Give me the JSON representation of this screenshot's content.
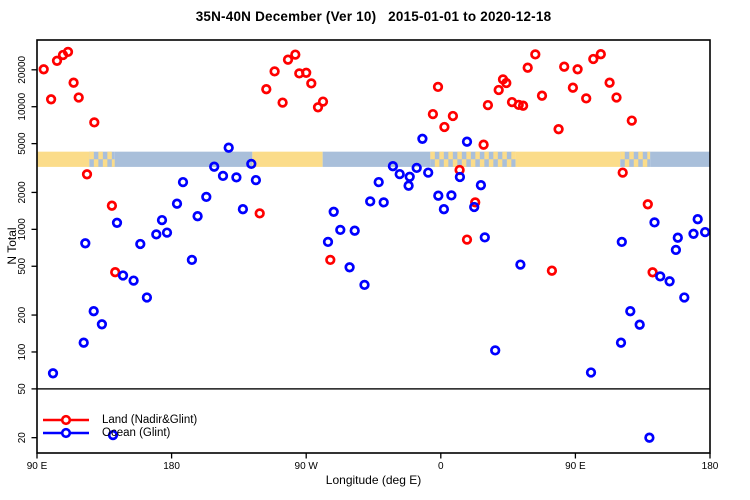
{
  "chart_data": {
    "type": "scatter",
    "title": "35N-40N December (Ver 10)   2015-01-01 to 2020-12-18",
    "xlabel": "Longitude (deg E)",
    "ylabel": "N Total",
    "y_scale": "log",
    "xlim": [
      90,
      540
    ],
    "ylim": [
      15,
      35000
    ],
    "grid": false,
    "reference_line": 50,
    "x_axis": {
      "ticks": [
        {
          "lon": 90,
          "label": "90 E"
        },
        {
          "lon": 180,
          "label": "180"
        },
        {
          "lon": 270,
          "label": "90 W"
        },
        {
          "lon": 360,
          "label": "0"
        },
        {
          "lon": 450,
          "label": "90 E"
        },
        {
          "lon": 540,
          "label": "180"
        }
      ]
    },
    "y_axis": {
      "ticks": [
        20000,
        10000,
        5000,
        2000,
        1000,
        500,
        200,
        100,
        50,
        20
      ]
    },
    "land_ocean_band": {
      "top_value": 4300,
      "bottom_value": 3230,
      "land_color": "#FBDC8A",
      "ocean_color": "#A9BFDA",
      "segments": [
        {
          "from": 90,
          "to": 125,
          "type": "land"
        },
        {
          "from": 125,
          "to": 142,
          "type": "mixed"
        },
        {
          "from": 142,
          "to": 234,
          "type": "ocean"
        },
        {
          "from": 234,
          "to": 281,
          "type": "land"
        },
        {
          "from": 281,
          "to": 353,
          "type": "ocean"
        },
        {
          "from": 353,
          "to": 410,
          "type": "mixed"
        },
        {
          "from": 410,
          "to": 480,
          "type": "land"
        },
        {
          "from": 480,
          "to": 500,
          "type": "mixed"
        },
        {
          "from": 500,
          "to": 540,
          "type": "ocean"
        }
      ]
    },
    "series": [
      {
        "name": "Land (Nadir&Glint)",
        "color": "#FF0000",
        "points": [
          [
            94.5,
            20200
          ],
          [
            103.4,
            23700
          ],
          [
            107.4,
            26400
          ],
          [
            110.7,
            28000
          ],
          [
            114.5,
            15700
          ],
          [
            117.9,
            11900
          ],
          [
            99.4,
            11500
          ],
          [
            128.3,
            7450
          ],
          [
            123.4,
            2810
          ],
          [
            140.1,
            1560
          ],
          [
            238.9,
            1350
          ],
          [
            243.3,
            13900
          ],
          [
            248.9,
            19400
          ],
          [
            257.8,
            24200
          ],
          [
            262.7,
            26600
          ],
          [
            265.4,
            18700
          ],
          [
            270,
            18900
          ],
          [
            273.4,
            15500
          ],
          [
            254.2,
            10800
          ],
          [
            277.9,
            9900
          ],
          [
            281.2,
            11000
          ],
          [
            358.1,
            14500
          ],
          [
            354.7,
            8700
          ],
          [
            362.4,
            6830
          ],
          [
            368.1,
            8400
          ],
          [
            391.5,
            10300
          ],
          [
            372.6,
            3050
          ],
          [
            388.6,
            4900
          ],
          [
            383,
            1660
          ],
          [
            377.5,
            825
          ],
          [
            398.7,
            13700
          ],
          [
            401.6,
            16700
          ],
          [
            403.8,
            15600
          ],
          [
            407.6,
            10900
          ],
          [
            412.1,
            10350
          ],
          [
            415,
            10200
          ],
          [
            418.1,
            20800
          ],
          [
            423.2,
            26700
          ],
          [
            427.7,
            12300
          ],
          [
            438.8,
            6560
          ],
          [
            442.5,
            21200
          ],
          [
            448.3,
            14300
          ],
          [
            451.5,
            20200
          ],
          [
            457.2,
            11700
          ],
          [
            462,
            24500
          ],
          [
            467,
            26800
          ],
          [
            472.9,
            15700
          ],
          [
            477.5,
            11900
          ],
          [
            487.7,
            7700
          ],
          [
            481.6,
            2900
          ],
          [
            498.4,
            1600
          ],
          [
            142.3,
            447
          ],
          [
            286.1,
            563
          ],
          [
            434.3,
            460
          ],
          [
            501.6,
            446
          ]
        ]
      },
      {
        "name": "Ocean (Glint)",
        "color": "#0000FF",
        "points": [
          [
            218.2,
            4630
          ],
          [
            208.5,
            3240
          ],
          [
            214.4,
            2730
          ],
          [
            223.3,
            2650
          ],
          [
            233.3,
            3420
          ],
          [
            236.4,
            2520
          ],
          [
            187.6,
            2430
          ],
          [
            183.6,
            1620
          ],
          [
            203.2,
            1840
          ],
          [
            197.4,
            1280
          ],
          [
            227.7,
            1460
          ],
          [
            173.6,
            1190
          ],
          [
            169.8,
            910
          ],
          [
            176.9,
            940
          ],
          [
            143.5,
            1130
          ],
          [
            122.3,
            770
          ],
          [
            159.1,
            760
          ],
          [
            347.7,
            5470
          ],
          [
            377.5,
            5180
          ],
          [
            328,
            3270
          ],
          [
            332.5,
            2820
          ],
          [
            339.2,
            2680
          ],
          [
            343.9,
            3170
          ],
          [
            351.6,
            2900
          ],
          [
            338.5,
            2270
          ],
          [
            318.5,
            2430
          ],
          [
            312.8,
            1690
          ],
          [
            321.8,
            1660
          ],
          [
            358.3,
            1880
          ],
          [
            367.1,
            1890
          ],
          [
            362.1,
            1460
          ],
          [
            386.8,
            2290
          ],
          [
            288.4,
            1390
          ],
          [
            292.8,
            990
          ],
          [
            302.4,
            975
          ],
          [
            284.6,
            790
          ],
          [
            389.4,
            860
          ],
          [
            372.8,
            2670
          ],
          [
            382.3,
            1520
          ],
          [
            502.9,
            1140
          ],
          [
            531.8,
            1210
          ],
          [
            529,
            920
          ],
          [
            536.7,
            950
          ],
          [
            518.5,
            855
          ],
          [
            481,
            790
          ],
          [
            517.2,
            680
          ],
          [
            193.6,
            563
          ],
          [
            147.5,
            420
          ],
          [
            154.6,
            382
          ],
          [
            163.5,
            278
          ],
          [
            127.9,
            215
          ],
          [
            133.4,
            168
          ],
          [
            121.2,
            119
          ],
          [
            100.7,
            67
          ],
          [
            140.8,
            21
          ],
          [
            299,
            490
          ],
          [
            309,
            352
          ],
          [
            413.2,
            516
          ],
          [
            506.7,
            413
          ],
          [
            513,
            377
          ],
          [
            522.8,
            278
          ],
          [
            486.7,
            215
          ],
          [
            493,
            167
          ],
          [
            480.5,
            119
          ],
          [
            396.4,
            103
          ],
          [
            460.4,
            68
          ],
          [
            499.5,
            20
          ]
        ]
      }
    ]
  },
  "legend": {
    "items": [
      {
        "label": "Land (Nadir&Glint)",
        "color": "#FF0000"
      },
      {
        "label": "Ocean (Glint)",
        "color": "#0000FF"
      }
    ]
  }
}
